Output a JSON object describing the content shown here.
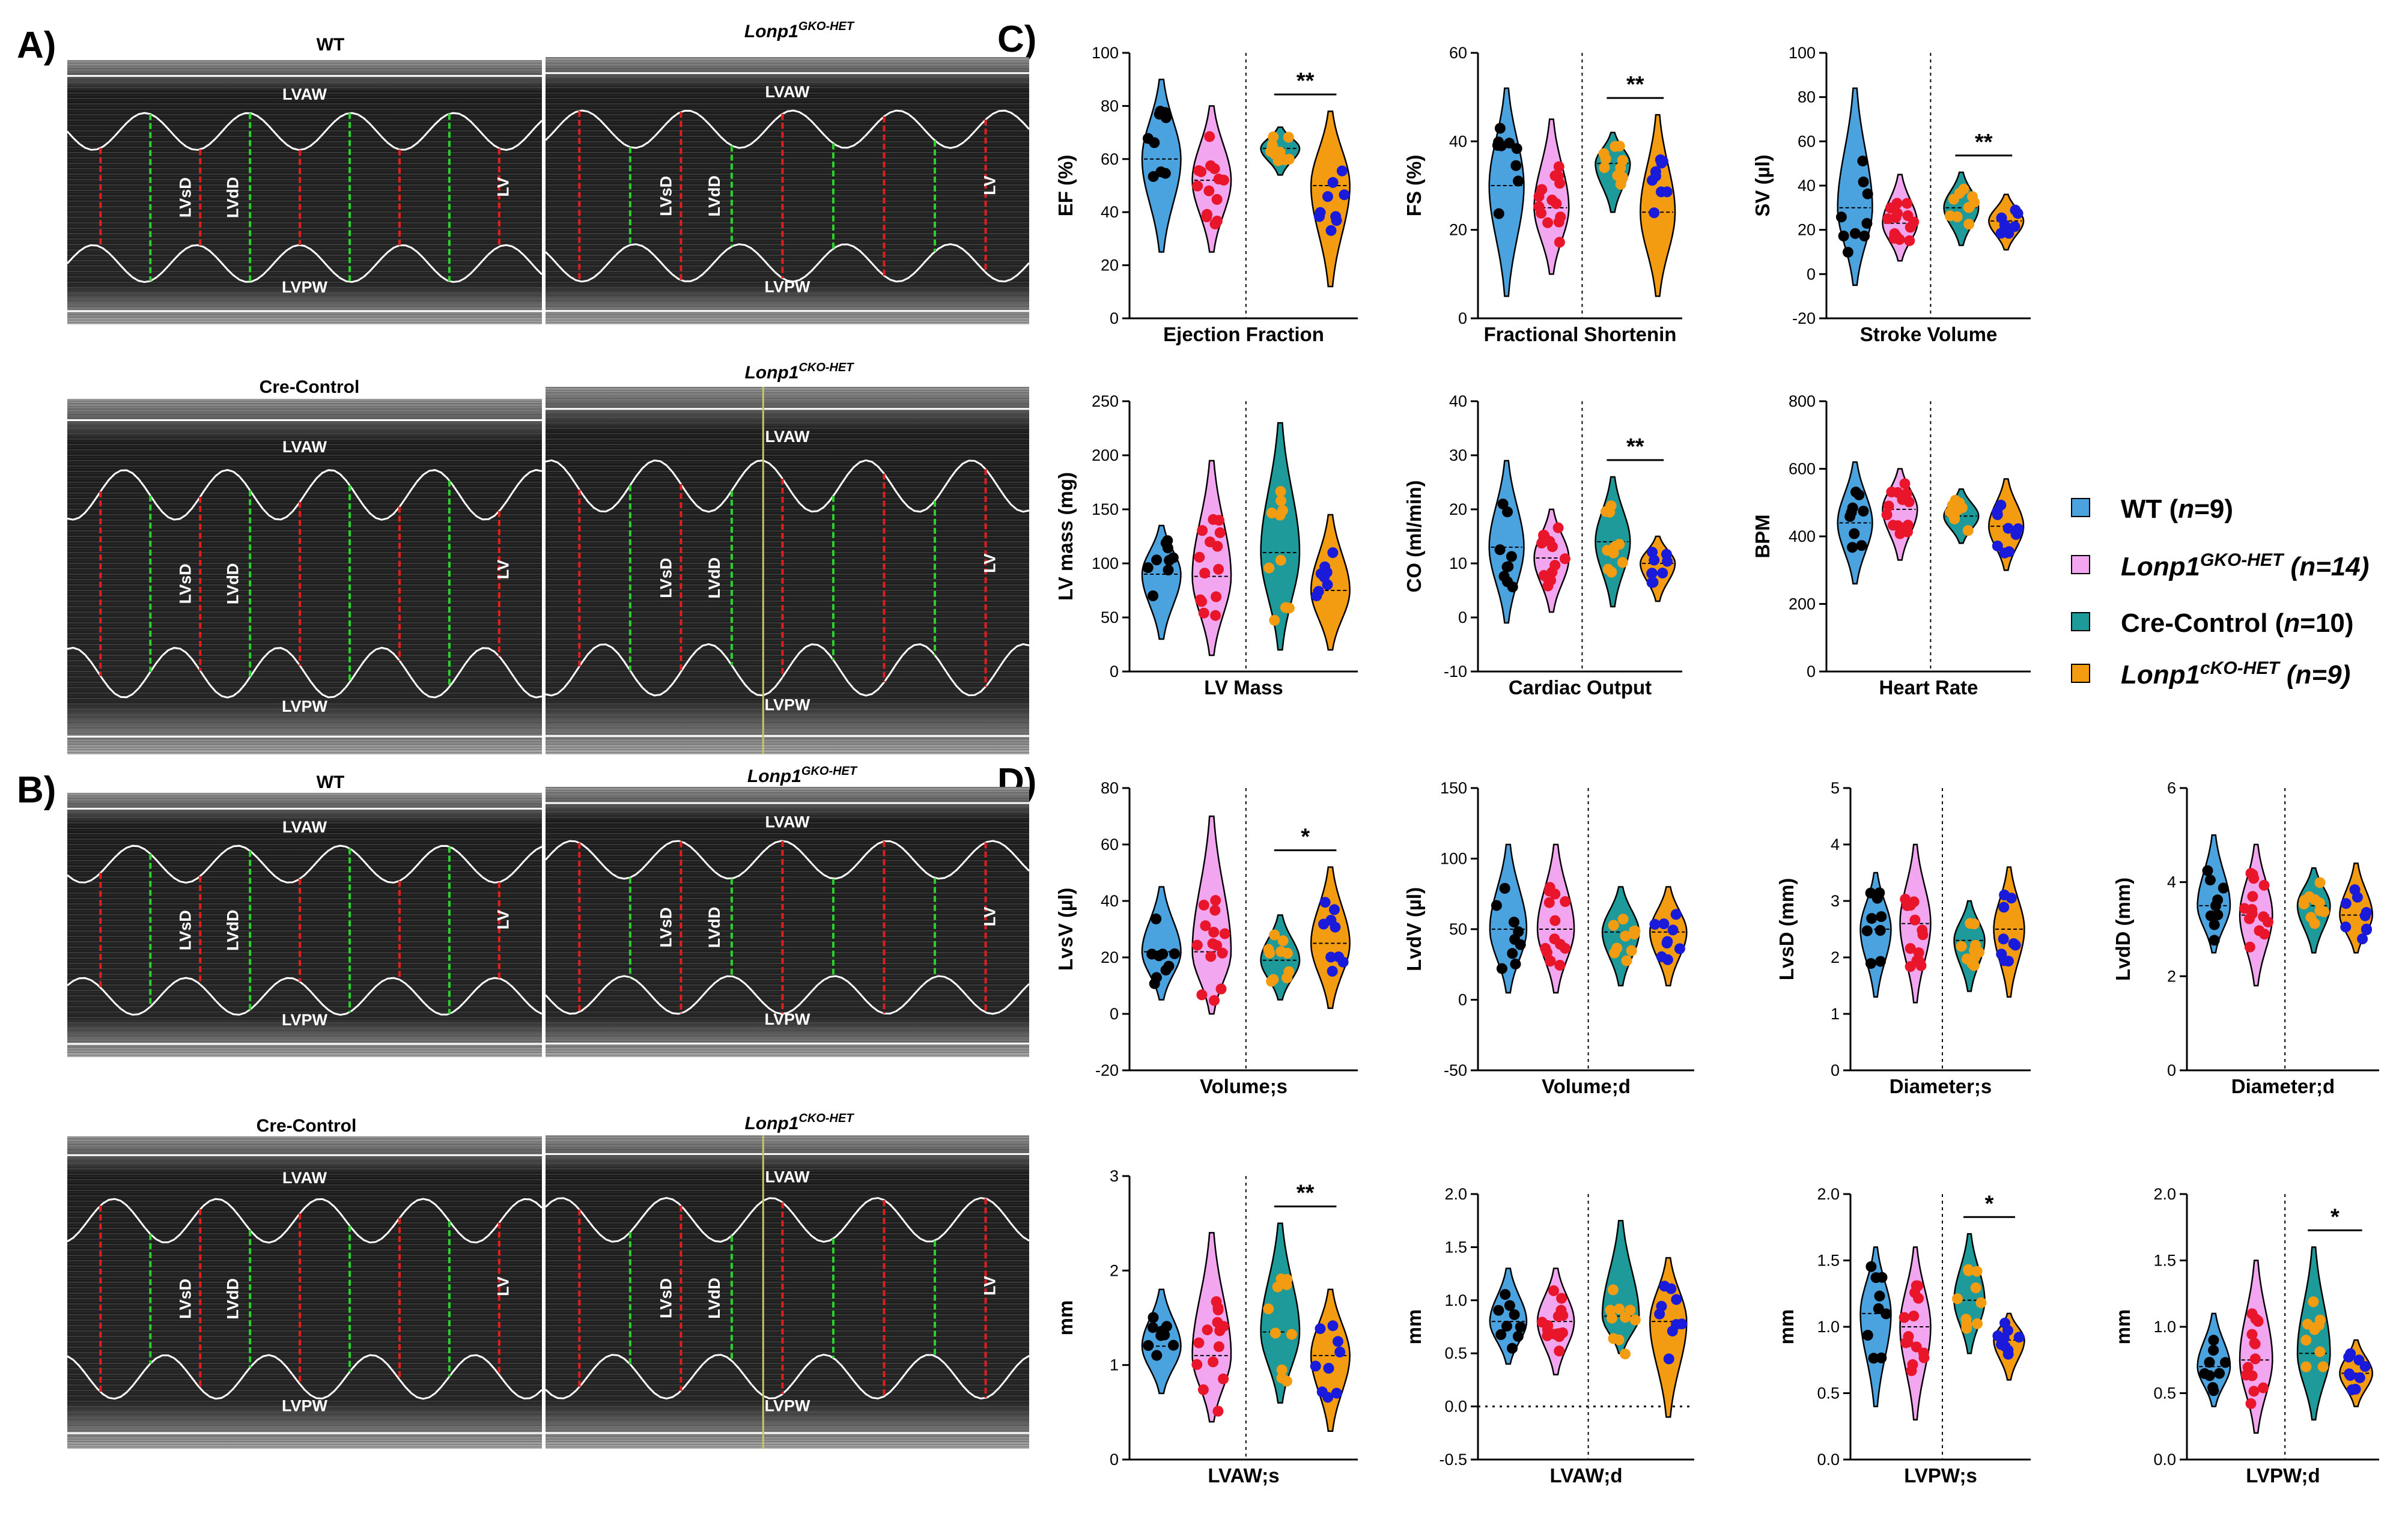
{
  "panels": {
    "A": "A)",
    "B": "B)",
    "C": "C)",
    "D": "D)"
  },
  "echo_titles": {
    "wt": "WT",
    "gko_base": "Lonp1",
    "gko_sup": "GKO-HET",
    "cre": "Cre-Control",
    "cko_base": "Lonp1",
    "cko_sup": "CKO-HET"
  },
  "mmode_labels": {
    "lvaw": "LVAW",
    "lvpw": "LVPW",
    "lvsd": "LVsD",
    "lvdd": "LVdD",
    "lv": "LV"
  },
  "legend": [
    {
      "prefix": "WT (",
      "n_italic": "n",
      "suffix": "=9)",
      "color": "#4aa3df",
      "sup": ""
    },
    {
      "prefix": "Lonp1",
      "sup": "GKO-HET",
      "suffix": " (n=14)",
      "color": "#f3a6f0"
    },
    {
      "prefix": "Cre-Control (",
      "n_italic": "n",
      "suffix": "=10)",
      "color": "#1f9a9a",
      "sup": ""
    },
    {
      "prefix": "Lonp1",
      "sup": "cKO-HET",
      "suffix": " (n=9)",
      "color": "#f39c12"
    }
  ],
  "group_colors": {
    "fills": [
      "#4aa3df",
      "#f3a6f0",
      "#1f9a9a",
      "#f39c12"
    ],
    "dots": [
      "#000000",
      "#e8152b",
      "#f39c12",
      "#1a1adb"
    ]
  },
  "chart_data": [
    {
      "type": "violin",
      "panel": "C",
      "ylabel": "EF (%)",
      "title": "Ejection Fraction",
      "ylim": [
        0,
        100
      ],
      "yticks": [
        0,
        20,
        40,
        60,
        80,
        100
      ],
      "groups": [
        "WT",
        "Lonp1 GKO-HET",
        "Cre-Control",
        "Lonp1 cKO-HET"
      ],
      "series": [
        {
          "name": "WT",
          "median": 60,
          "min": 25,
          "max": 90
        },
        {
          "name": "Lonp1 GKO-HET",
          "median": 52,
          "min": 25,
          "max": 80
        },
        {
          "name": "Cre-Control",
          "median": 64,
          "min": 54,
          "max": 72
        },
        {
          "name": "Lonp1 cKO-HET",
          "median": 50,
          "min": 12,
          "max": 78
        }
      ],
      "significance": [
        {
          "between": [
            3,
            4
          ],
          "label": "**"
        }
      ]
    },
    {
      "type": "violin",
      "panel": "C",
      "ylabel": "FS (%)",
      "title": "Fractional Shortenin",
      "ylim": [
        0,
        60
      ],
      "yticks": [
        0,
        20,
        40,
        60
      ],
      "groups": [
        "WT",
        "Lonp1 GKO-HET",
        "Cre-Control",
        "Lonp1 cKO-HET"
      ],
      "series": [
        {
          "name": "WT",
          "median": 30,
          "min": 5,
          "max": 52
        },
        {
          "name": "Lonp1 GKO-HET",
          "median": 25,
          "min": 10,
          "max": 45
        },
        {
          "name": "Cre-Control",
          "median": 35,
          "min": 24,
          "max": 42
        },
        {
          "name": "Lonp1 cKO-HET",
          "median": 24,
          "min": 5,
          "max": 46
        }
      ],
      "significance": [
        {
          "between": [
            3,
            4
          ],
          "label": "**"
        }
      ]
    },
    {
      "type": "violin",
      "panel": "C",
      "ylabel": "SV (µl)",
      "title": "Stroke Volume",
      "ylim": [
        -20,
        100
      ],
      "yticks": [
        -20,
        0,
        20,
        40,
        60,
        80,
        100
      ],
      "groups": [
        "WT",
        "Lonp1 GKO-HET",
        "Cre-Control",
        "Lonp1 cKO-HET"
      ],
      "series": [
        {
          "name": "WT",
          "median": 30,
          "min": -5,
          "max": 84
        },
        {
          "name": "Lonp1 GKO-HET",
          "median": 23,
          "min": 6,
          "max": 45
        },
        {
          "name": "Cre-Control",
          "median": 30,
          "min": 13,
          "max": 46
        },
        {
          "name": "Lonp1 cKO-HET",
          "median": 24,
          "min": 11,
          "max": 36
        }
      ],
      "significance": [
        {
          "between": [
            3,
            4
          ],
          "label": "**"
        }
      ]
    },
    {
      "type": "violin",
      "panel": "C",
      "ylabel": "LV mass (mg)",
      "title": "LV Mass",
      "ylim": [
        0,
        250
      ],
      "yticks": [
        0,
        50,
        100,
        150,
        200,
        250
      ],
      "groups": [
        "WT",
        "Lonp1 GKO-HET",
        "Cre-Control",
        "Lonp1 cKO-HET"
      ],
      "series": [
        {
          "name": "WT",
          "median": 90,
          "min": 30,
          "max": 135
        },
        {
          "name": "Lonp1 GKO-HET",
          "median": 88,
          "min": 15,
          "max": 195
        },
        {
          "name": "Cre-Control",
          "median": 110,
          "min": 20,
          "max": 230
        },
        {
          "name": "Lonp1 cKO-HET",
          "median": 75,
          "min": 20,
          "max": 145
        }
      ],
      "significance": []
    },
    {
      "type": "violin",
      "panel": "C",
      "ylabel": "CO (ml/min)",
      "title": "Cardiac Output",
      "ylim": [
        -10,
        40
      ],
      "yticks": [
        -10,
        0,
        10,
        20,
        30,
        40
      ],
      "groups": [
        "WT",
        "Lonp1 GKO-HET",
        "Cre-Control",
        "Lonp1 cKO-HET"
      ],
      "series": [
        {
          "name": "WT",
          "median": 13,
          "min": -1,
          "max": 29
        },
        {
          "name": "Lonp1 GKO-HET",
          "median": 11,
          "min": 1,
          "max": 20
        },
        {
          "name": "Cre-Control",
          "median": 14,
          "min": 2,
          "max": 26
        },
        {
          "name": "Lonp1 cKO-HET",
          "median": 10,
          "min": 3,
          "max": 15
        }
      ],
      "significance": [
        {
          "between": [
            3,
            4
          ],
          "label": "**"
        }
      ]
    },
    {
      "type": "violin",
      "panel": "C",
      "ylabel": "BPM",
      "title": "Heart Rate",
      "ylim": [
        0,
        800
      ],
      "yticks": [
        0,
        200,
        400,
        600,
        800
      ],
      "groups": [
        "WT",
        "Lonp1 GKO-HET",
        "Cre-Control",
        "Lonp1 cKO-HET"
      ],
      "series": [
        {
          "name": "WT",
          "median": 440,
          "min": 260,
          "max": 620
        },
        {
          "name": "Lonp1 GKO-HET",
          "median": 480,
          "min": 330,
          "max": 600
        },
        {
          "name": "Cre-Control",
          "median": 460,
          "min": 380,
          "max": 540
        },
        {
          "name": "Lonp1 cKO-HET",
          "median": 430,
          "min": 300,
          "max": 570
        }
      ],
      "significance": []
    },
    {
      "type": "violin",
      "panel": "D",
      "ylabel": "LvsV (µl)",
      "title": "Volume;s",
      "ylim": [
        -20,
        80
      ],
      "yticks": [
        -20,
        0,
        20,
        40,
        60,
        80
      ],
      "groups": [
        "WT",
        "Lonp1 GKO-HET",
        "Cre-Control",
        "Lonp1 cKO-HET"
      ],
      "series": [
        {
          "name": "WT",
          "median": 22,
          "min": 5,
          "max": 45
        },
        {
          "name": "Lonp1 GKO-HET",
          "median": 22,
          "min": 0,
          "max": 70
        },
        {
          "name": "Cre-Control",
          "median": 19,
          "min": 5,
          "max": 35
        },
        {
          "name": "Lonp1 cKO-HET",
          "median": 25,
          "min": 2,
          "max": 52
        }
      ],
      "significance": [
        {
          "between": [
            3,
            4
          ],
          "label": "*"
        }
      ]
    },
    {
      "type": "violin",
      "panel": "D",
      "ylabel": "LvdV (µl)",
      "title": "Volume;d",
      "ylim": [
        -50,
        150
      ],
      "yticks": [
        -50,
        0,
        50,
        100,
        150
      ],
      "groups": [
        "WT",
        "Lonp1 GKO-HET",
        "Cre-Control",
        "Lonp1 cKO-HET"
      ],
      "series": [
        {
          "name": "WT",
          "median": 50,
          "min": 5,
          "max": 110
        },
        {
          "name": "Lonp1 GKO-HET",
          "median": 50,
          "min": 5,
          "max": 110
        },
        {
          "name": "Cre-Control",
          "median": 48,
          "min": 10,
          "max": 80
        },
        {
          "name": "Lonp1 cKO-HET",
          "median": 48,
          "min": 10,
          "max": 80
        }
      ],
      "significance": []
    },
    {
      "type": "violin",
      "panel": "D",
      "ylabel": "LvsD (mm)",
      "title": "Diameter;s",
      "ylim": [
        0,
        5
      ],
      "yticks": [
        0,
        1,
        2,
        3,
        4,
        5
      ],
      "groups": [
        "WT",
        "Lonp1 GKO-HET",
        "Cre-Control",
        "Lonp1 cKO-HET"
      ],
      "series": [
        {
          "name": "WT",
          "median": 2.5,
          "min": 1.3,
          "max": 3.5
        },
        {
          "name": "Lonp1 GKO-HET",
          "median": 2.6,
          "min": 1.2,
          "max": 4.0
        },
        {
          "name": "Cre-Control",
          "median": 2.3,
          "min": 1.4,
          "max": 3.0
        },
        {
          "name": "Lonp1 cKO-HET",
          "median": 2.5,
          "min": 1.3,
          "max": 3.6
        }
      ],
      "significance": []
    },
    {
      "type": "violin",
      "panel": "D",
      "ylabel": "LvdD (mm)",
      "title": "Diameter;d",
      "ylim": [
        0,
        6
      ],
      "yticks": [
        0,
        2,
        4,
        6
      ],
      "groups": [
        "WT",
        "Lonp1 GKO-HET",
        "Cre-Control",
        "Lonp1 cKO-HET"
      ],
      "series": [
        {
          "name": "WT",
          "median": 3.5,
          "min": 2.5,
          "max": 5.0
        },
        {
          "name": "Lonp1 GKO-HET",
          "median": 3.3,
          "min": 1.8,
          "max": 4.8
        },
        {
          "name": "Cre-Control",
          "median": 3.5,
          "min": 2.5,
          "max": 4.3
        },
        {
          "name": "Lonp1 cKO-HET",
          "median": 3.3,
          "min": 2.5,
          "max": 4.4
        }
      ],
      "significance": []
    },
    {
      "type": "violin",
      "panel": "D",
      "ylabel": "mm",
      "title": "LVAW;s",
      "ylim": [
        0,
        3
      ],
      "yticks": [
        0,
        1,
        2,
        3
      ],
      "groups": [
        "WT",
        "Lonp1 GKO-HET",
        "Cre-Control",
        "Lonp1 cKO-HET"
      ],
      "series": [
        {
          "name": "WT",
          "median": 1.2,
          "min": 0.7,
          "max": 1.8
        },
        {
          "name": "Lonp1 GKO-HET",
          "median": 1.1,
          "min": 0.4,
          "max": 2.4
        },
        {
          "name": "Cre-Control",
          "median": 1.35,
          "min": 0.6,
          "max": 2.5
        },
        {
          "name": "Lonp1 cKO-HET",
          "median": 1.1,
          "min": 0.3,
          "max": 1.8
        }
      ],
      "significance": [
        {
          "between": [
            3,
            4
          ],
          "label": "**"
        }
      ]
    },
    {
      "type": "violin",
      "panel": "D",
      "ylabel": "mm",
      "title": "LVAW;d",
      "ylim": [
        -0.5,
        2.0
      ],
      "yticks": [
        -0.5,
        0.0,
        0.5,
        1.0,
        1.5,
        2.0
      ],
      "groups": [
        "WT",
        "Lonp1 GKO-HET",
        "Cre-Control",
        "Lonp1 cKO-HET"
      ],
      "series": [
        {
          "name": "WT",
          "median": 0.8,
          "min": 0.4,
          "max": 1.3
        },
        {
          "name": "Lonp1 GKO-HET",
          "median": 0.8,
          "min": 0.3,
          "max": 1.3
        },
        {
          "name": "Cre-Control",
          "median": 0.85,
          "min": 0.5,
          "max": 1.75
        },
        {
          "name": "Lonp1 cKO-HET",
          "median": 0.8,
          "min": -0.1,
          "max": 1.4
        }
      ],
      "significance": []
    },
    {
      "type": "violin",
      "panel": "D",
      "ylabel": "mm",
      "title": "LVPW;s",
      "ylim": [
        0.0,
        2.0
      ],
      "yticks": [
        0.0,
        0.5,
        1.0,
        1.5,
        2.0
      ],
      "groups": [
        "WT",
        "Lonp1 GKO-HET",
        "Cre-Control",
        "Lonp1 cKO-HET"
      ],
      "series": [
        {
          "name": "WT",
          "median": 1.1,
          "min": 0.4,
          "max": 1.6
        },
        {
          "name": "Lonp1 GKO-HET",
          "median": 1.0,
          "min": 0.3,
          "max": 1.6
        },
        {
          "name": "Cre-Control",
          "median": 1.2,
          "min": 0.8,
          "max": 1.7
        },
        {
          "name": "Lonp1 cKO-HET",
          "median": 0.9,
          "min": 0.6,
          "max": 1.1
        }
      ],
      "significance": [
        {
          "between": [
            3,
            4
          ],
          "label": "*"
        }
      ]
    },
    {
      "type": "violin",
      "panel": "D",
      "ylabel": "mm",
      "title": "LVPW;d",
      "ylim": [
        0.0,
        2.0
      ],
      "yticks": [
        0.0,
        0.5,
        1.0,
        1.5,
        2.0
      ],
      "groups": [
        "WT",
        "Lonp1 GKO-HET",
        "Cre-Control",
        "Lonp1 cKO-HET"
      ],
      "series": [
        {
          "name": "WT",
          "median": 0.7,
          "min": 0.4,
          "max": 1.1
        },
        {
          "name": "Lonp1 GKO-HET",
          "median": 0.75,
          "min": 0.2,
          "max": 1.5
        },
        {
          "name": "Cre-Control",
          "median": 0.8,
          "min": 0.3,
          "max": 1.6
        },
        {
          "name": "Lonp1 cKO-HET",
          "median": 0.65,
          "min": 0.4,
          "max": 0.9
        }
      ],
      "significance": [
        {
          "between": [
            3,
            4
          ],
          "label": "*"
        }
      ]
    }
  ]
}
